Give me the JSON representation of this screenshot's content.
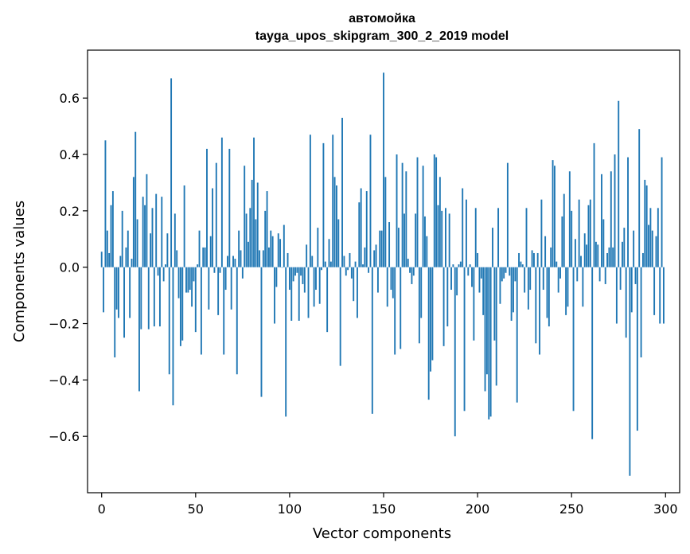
{
  "chart_data": {
    "type": "bar",
    "title": "автомойка",
    "subtitle": "tayga_upos_skipgram_300_2_2019 model",
    "xlabel": "Vector components",
    "ylabel": "Components values",
    "xlim": [
      -7.5,
      307.5
    ],
    "ylim": [
      -0.8,
      0.77
    ],
    "xticks": [
      0,
      50,
      100,
      150,
      200,
      250,
      300
    ],
    "yticks": [
      -0.6,
      -0.4,
      -0.2,
      0.0,
      0.2,
      0.4,
      0.6
    ],
    "ytick_labels": [
      "−0.6",
      "−0.4",
      "−0.2",
      "0.0",
      "0.2",
      "0.4",
      "0.6"
    ],
    "xtick_labels": [
      "0",
      "50",
      "100",
      "150",
      "200",
      "250",
      "300"
    ],
    "bar_color": "#1f77b4",
    "grid": false,
    "values": [
      0.055,
      -0.16,
      0.45,
      0.13,
      0.05,
      0.22,
      0.27,
      -0.32,
      -0.15,
      -0.18,
      0.04,
      0.2,
      -0.25,
      0.07,
      0.13,
      -0.18,
      0.03,
      0.32,
      0.48,
      0.17,
      -0.44,
      -0.22,
      0.25,
      0.22,
      0.33,
      -0.22,
      0.12,
      0.21,
      -0.21,
      0.26,
      -0.03,
      -0.21,
      0.25,
      -0.05,
      0.01,
      0.12,
      -0.38,
      0.67,
      -0.49,
      0.19,
      0.06,
      -0.11,
      -0.28,
      -0.26,
      0.29,
      -0.09,
      -0.09,
      -0.08,
      -0.14,
      -0.05,
      -0.23,
      0.01,
      0.13,
      -0.31,
      0.07,
      0.07,
      0.42,
      -0.15,
      0.11,
      0.28,
      -0.02,
      0.37,
      -0.17,
      -0.02,
      0.46,
      -0.31,
      -0.08,
      0.04,
      0.42,
      -0.15,
      0.04,
      0.03,
      -0.38,
      0.13,
      0.06,
      -0.04,
      0.36,
      0.19,
      0.09,
      0.21,
      0.31,
      0.46,
      0.17,
      0.3,
      0.06,
      -0.46,
      0.06,
      0.2,
      0.27,
      0.07,
      0.13,
      0.11,
      -0.2,
      -0.07,
      0.12,
      0.1,
      0.0,
      0.15,
      -0.53,
      0.05,
      -0.08,
      -0.19,
      -0.05,
      -0.03,
      -0.02,
      -0.19,
      -0.03,
      -0.06,
      -0.09,
      0.08,
      -0.18,
      0.47,
      0.04,
      -0.14,
      -0.08,
      0.14,
      -0.13,
      -0.01,
      0.44,
      0.02,
      -0.23,
      0.1,
      0.02,
      0.47,
      0.32,
      0.29,
      0.17,
      -0.35,
      0.53,
      0.04,
      -0.03,
      -0.01,
      0.05,
      -0.04,
      -0.12,
      0.02,
      -0.18,
      0.23,
      0.28,
      0.01,
      0.07,
      0.27,
      -0.02,
      0.47,
      -0.52,
      0.06,
      0.08,
      -0.09,
      0.13,
      0.13,
      0.69,
      0.32,
      -0.14,
      0.16,
      -0.08,
      -0.11,
      -0.31,
      0.4,
      0.14,
      -0.29,
      0.37,
      0.19,
      0.34,
      0.03,
      -0.02,
      -0.06,
      -0.03,
      0.19,
      0.39,
      -0.27,
      -0.18,
      0.36,
      0.18,
      0.11,
      -0.47,
      -0.37,
      -0.33,
      0.4,
      0.39,
      0.22,
      0.32,
      0.2,
      -0.28,
      0.21,
      -0.21,
      0.19,
      -0.08,
      0.01,
      -0.6,
      -0.1,
      0.01,
      0.02,
      0.28,
      -0.51,
      0.24,
      -0.03,
      0.01,
      -0.07,
      -0.26,
      0.21,
      0.05,
      -0.09,
      -0.04,
      -0.17,
      -0.44,
      -0.38,
      -0.54,
      -0.53,
      0.14,
      -0.26,
      -0.42,
      0.21,
      -0.13,
      -0.05,
      -0.04,
      -0.02,
      0.37,
      -0.03,
      -0.19,
      -0.16,
      -0.05,
      -0.48,
      0.05,
      0.02,
      0.01,
      -0.09,
      0.21,
      -0.15,
      -0.08,
      0.06,
      0.05,
      -0.27,
      0.05,
      -0.31,
      0.24,
      -0.08,
      0.11,
      -0.18,
      -0.21,
      0.07,
      0.38,
      0.36,
      0.02,
      -0.09,
      -0.04,
      0.18,
      0.26,
      -0.17,
      -0.14,
      0.34,
      0.2,
      -0.51,
      0.1,
      -0.05,
      0.24,
      0.04,
      -0.14,
      0.12,
      0.08,
      0.22,
      0.24,
      -0.61,
      0.44,
      0.09,
      0.08,
      -0.05,
      0.33,
      0.17,
      -0.06,
      0.05,
      0.07,
      0.34,
      0.07,
      0.4,
      -0.2,
      0.59,
      -0.08,
      0.09,
      0.14,
      -0.25,
      0.39,
      -0.74,
      -0.16,
      0.13,
      -0.06,
      -0.58,
      0.49,
      -0.32,
      0.05,
      0.31,
      0.29,
      0.15,
      0.21,
      0.13,
      -0.17,
      0.11,
      0.21,
      -0.2,
      0.39,
      -0.2
    ]
  }
}
